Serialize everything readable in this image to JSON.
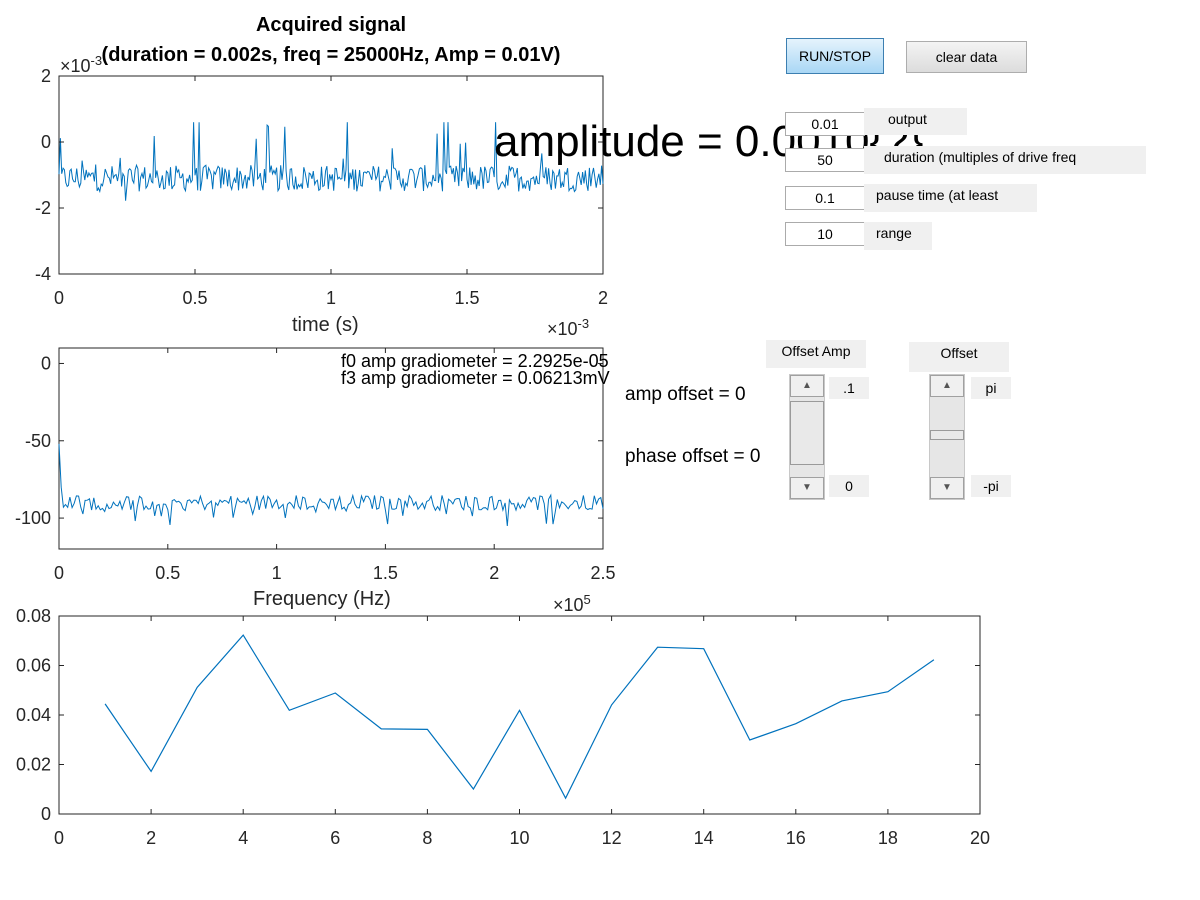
{
  "colors": {
    "line": "#0072BD",
    "axis": "#262626",
    "panel": "#f0f0f0"
  },
  "plot1": {
    "title_line1": "Acquired signal",
    "title_line2": "(duration = 0.002s, freq = 25000Hz, Amp = 0.01V)",
    "xlabel": "time (s)",
    "xticks": [
      "0",
      "0.5",
      "1",
      "1.5",
      "2"
    ],
    "yticks": [
      "2",
      "0",
      "-2",
      "-4"
    ],
    "x_exponent_base": "×10",
    "x_exponent_power": "-3",
    "y_exponent_base": "×10",
    "y_exponent_power": "-3",
    "overlay_text": "amplitude = 0.0010{?}"
  },
  "plot2": {
    "xlabel": "Frequency (Hz)",
    "xticks": [
      "0",
      "0.5",
      "1",
      "1.5",
      "2",
      "2.5"
    ],
    "yticks": [
      "0",
      "-50",
      "-100"
    ],
    "x_exponent_base": "×10",
    "x_exponent_power": "5",
    "annot1": "f0 amp gradiometer = 2.2925e-05",
    "annot2": "f3 amp gradiometer = 0.06213mV"
  },
  "plot3": {
    "xticks": [
      "0",
      "2",
      "4",
      "6",
      "8",
      "10",
      "12",
      "14",
      "16",
      "18",
      "20"
    ],
    "yticks": [
      "0.08",
      "0.06",
      "0.04",
      "0.02",
      "0"
    ]
  },
  "side_text": {
    "amp_offset": "amp offset = 0",
    "phase_offset": "phase offset = 0"
  },
  "controls": {
    "run_stop": "RUN/STOP",
    "clear_data": "clear data",
    "output_value": "0.01",
    "output_label": "output",
    "duration_value": "50",
    "duration_label": "duration (multiples of drive freq",
    "pause_value": "0.1",
    "pause_label": "pause time (at least",
    "range_value": "10",
    "range_label": "range",
    "offset_amp_label": "Offset Amp",
    "offset_amp_max": ".1",
    "offset_amp_min": "0",
    "offset_phase_label": "Offset",
    "offset_phase_max": "pi",
    "offset_phase_min": "-pi"
  },
  "chart_data": [
    {
      "type": "line",
      "title": "Acquired signal\n(duration = 0.002s, freq = 25000Hz, Amp = 0.01V)",
      "xlabel": "time (s)",
      "ylabel": "",
      "x_scale_note": "×10^-3",
      "y_scale_note": "×10^-3",
      "xlim": [
        0,
        0.002
      ],
      "ylim": [
        -0.004,
        0.002
      ],
      "grid": false,
      "description_values": {
        "baseline_mean": -0.0011,
        "noise_range": [
          -0.0032,
          0.0006
        ]
      }
    },
    {
      "type": "line",
      "xlabel": "Frequency (Hz)",
      "x_scale_note": "×10^5",
      "xlim": [
        0,
        250000
      ],
      "ylim": [
        -120,
        10
      ],
      "grid": false,
      "description_values": {
        "start_value": -52,
        "noise_floor_mean": -90
      }
    },
    {
      "type": "line",
      "xlim": [
        0,
        20
      ],
      "ylim": [
        0,
        0.08
      ],
      "grid": false,
      "x": [
        1,
        2,
        3,
        4,
        5,
        6,
        7,
        8,
        9,
        10,
        11,
        12,
        13,
        14,
        15,
        16,
        17,
        18,
        19
      ],
      "y": [
        0.0445,
        0.0172,
        0.0512,
        0.0723,
        0.0419,
        0.0489,
        0.0344,
        0.0342,
        0.0101,
        0.0419,
        0.0064,
        0.0441,
        0.0674,
        0.0668,
        0.0299,
        0.0365,
        0.0457,
        0.0494,
        0.0623
      ]
    }
  ]
}
